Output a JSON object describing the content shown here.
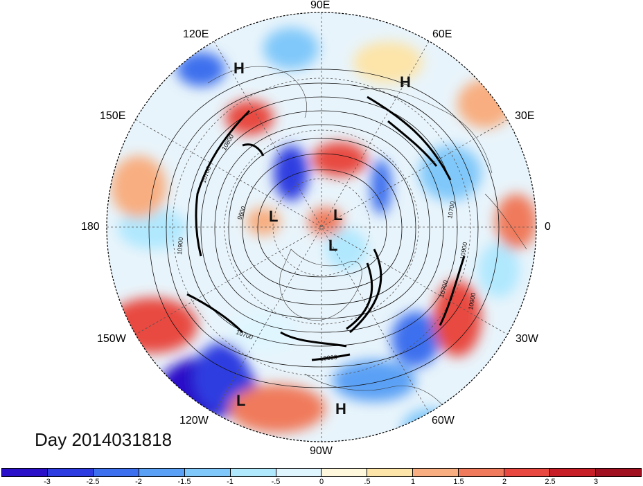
{
  "meridian_labels": {
    "lon_90e": "90E",
    "lon_60e": "60E",
    "lon_30e": "30E",
    "lon_0": "0",
    "lon_30w": "30W",
    "lon_60w": "60W",
    "lon_90w": "90W",
    "lon_120w": "120W",
    "lon_150w": "150W",
    "lon_180": "180",
    "lon_150e": "150E",
    "lon_120e": "120E"
  },
  "pressure_centers": [
    {
      "label": "H"
    },
    {
      "label": "H"
    },
    {
      "label": "L"
    },
    {
      "label": "L"
    },
    {
      "label": "L"
    },
    {
      "label": "L"
    },
    {
      "label": "H"
    }
  ],
  "contour_labels": [
    "10800",
    "10700",
    "10900",
    "9600",
    "10700",
    "10900",
    "10700",
    "10900",
    "10700",
    "10800"
  ],
  "date_text": "Day 2014031818",
  "colorbar": {
    "colors": [
      "#2a10c8",
      "#2d3ce0",
      "#3d70ee",
      "#5aa0f5",
      "#80c8fa",
      "#b0e8fe",
      "#e0f6ff",
      "#fff8dc",
      "#fde4a8",
      "#f8ae80",
      "#f07a5c",
      "#e84840",
      "#c81e28",
      "#a01020"
    ],
    "ticks": [
      "-3",
      "-2.5",
      "-2",
      "-1.5",
      "-1",
      "-.5",
      "0",
      ".5",
      "1",
      "1.5",
      "2",
      "2.5",
      "3"
    ]
  }
}
